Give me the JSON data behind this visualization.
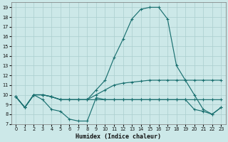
{
  "xlabel": "Humidex (Indice chaleur)",
  "xlim": [
    -0.5,
    23.5
  ],
  "ylim": [
    7,
    19.5
  ],
  "yticks": [
    7,
    8,
    9,
    10,
    11,
    12,
    13,
    14,
    15,
    16,
    17,
    18,
    19
  ],
  "xticks": [
    0,
    1,
    2,
    3,
    4,
    5,
    6,
    7,
    8,
    9,
    10,
    11,
    12,
    13,
    14,
    15,
    16,
    17,
    18,
    19,
    20,
    21,
    22,
    23
  ],
  "background_color": "#cce8e8",
  "grid_color": "#aacece",
  "line_color": "#1a7070",
  "line_peak": [
    9.8,
    8.7,
    10.0,
    10.0,
    9.8,
    9.5,
    9.5,
    9.5,
    9.5,
    10.5,
    11.5,
    13.8,
    15.7,
    17.8,
    18.8,
    19.0,
    19.0,
    17.8,
    13.0,
    11.5,
    10.0,
    8.5,
    8.0,
    8.7
  ],
  "line_grad": [
    9.8,
    8.7,
    10.0,
    10.0,
    9.8,
    9.5,
    9.5,
    9.5,
    9.5,
    10.0,
    10.5,
    11.0,
    11.2,
    11.3,
    11.4,
    11.5,
    11.5,
    11.5,
    11.5,
    11.5,
    11.5,
    11.5,
    11.5,
    11.5
  ],
  "line_flat": [
    9.8,
    8.7,
    10.0,
    10.0,
    9.8,
    9.5,
    9.5,
    9.5,
    9.5,
    9.5,
    9.5,
    9.5,
    9.5,
    9.5,
    9.5,
    9.5,
    9.5,
    9.5,
    9.5,
    9.5,
    9.5,
    9.5,
    9.5,
    9.5
  ],
  "line_dip": [
    9.8,
    8.7,
    10.0,
    9.5,
    8.5,
    8.3,
    7.5,
    7.3,
    7.3,
    9.7,
    9.5,
    9.5,
    9.5,
    9.5,
    9.5,
    9.5,
    9.5,
    9.5,
    9.5,
    9.5,
    8.5,
    8.3,
    8.0,
    8.7
  ]
}
